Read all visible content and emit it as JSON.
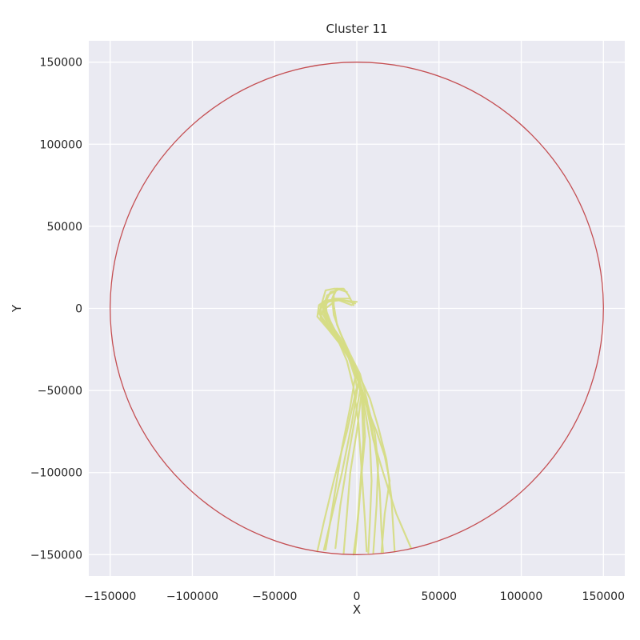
{
  "chart_data": {
    "type": "line",
    "title": "Cluster 11",
    "xlabel": "X",
    "ylabel": "Y",
    "xlim": [
      -163000,
      163000
    ],
    "ylim": [
      -163000,
      163000
    ],
    "xticks": [
      -150000,
      -100000,
      -50000,
      0,
      50000,
      100000,
      150000
    ],
    "yticks": [
      -150000,
      -100000,
      -50000,
      0,
      50000,
      100000,
      150000
    ],
    "xtick_labels": [
      "−150000",
      "−100000",
      "−50000",
      "0",
      "50000",
      "100000",
      "150000"
    ],
    "ytick_labels": [
      "−150000",
      "−100000",
      "−50000",
      "0",
      "50000",
      "100000",
      "150000"
    ],
    "grid": true,
    "background_color": "#eaeaf2",
    "boundary_circle": {
      "center": [
        0,
        0
      ],
      "radius": 150000,
      "color": "#c44e52"
    },
    "trajectory_color": "#d6dc85",
    "series": [
      {
        "points": [
          [
            -2000,
            2000
          ],
          [
            -5000,
            8000
          ],
          [
            -8000,
            12000
          ],
          [
            -14000,
            12000
          ],
          [
            -19000,
            11000
          ],
          [
            -21000,
            4000
          ],
          [
            -18000,
            -6000
          ],
          [
            -12000,
            -18000
          ],
          [
            -6000,
            -32000
          ],
          [
            -2000,
            -48000
          ],
          [
            1000,
            -70000
          ],
          [
            3000,
            -100000
          ],
          [
            5000,
            -130000
          ],
          [
            6000,
            -148000
          ]
        ]
      },
      {
        "points": [
          [
            -1000,
            3000
          ],
          [
            -8000,
            5000
          ],
          [
            -16000,
            5000
          ],
          [
            -21000,
            3000
          ],
          [
            -23000,
            -3000
          ],
          [
            -18000,
            -10000
          ],
          [
            -10000,
            -20000
          ],
          [
            -3000,
            -32000
          ],
          [
            1000,
            -45000
          ],
          [
            -3000,
            -70000
          ],
          [
            -9000,
            -100000
          ],
          [
            -16000,
            -130000
          ],
          [
            -20000,
            -147000
          ]
        ]
      },
      {
        "points": [
          [
            0,
            4000
          ],
          [
            -10000,
            5000
          ],
          [
            -19000,
            5000
          ],
          [
            -23000,
            2000
          ],
          [
            -24000,
            -5000
          ],
          [
            -18000,
            -12000
          ],
          [
            -10000,
            -22000
          ],
          [
            -2000,
            -34000
          ],
          [
            0,
            -48000
          ],
          [
            -6000,
            -75000
          ],
          [
            -14000,
            -105000
          ],
          [
            -20000,
            -130000
          ],
          [
            -24000,
            -148000
          ]
        ]
      },
      {
        "points": [
          [
            -6000,
            10000
          ],
          [
            -12000,
            12000
          ],
          [
            -14000,
            8000
          ],
          [
            -14000,
            2000
          ],
          [
            -12000,
            -10000
          ],
          [
            -8000,
            -20000
          ],
          [
            -3000,
            -32000
          ],
          [
            2000,
            -45000
          ],
          [
            6000,
            -60000
          ],
          [
            10000,
            -80000
          ],
          [
            16000,
            -100000
          ],
          [
            24000,
            -125000
          ],
          [
            33000,
            -146000
          ]
        ]
      },
      {
        "points": [
          [
            -14000,
            10000
          ],
          [
            -18000,
            8000
          ],
          [
            -20000,
            2000
          ],
          [
            -16000,
            -8000
          ],
          [
            -10000,
            -20000
          ],
          [
            -4000,
            -32000
          ],
          [
            2000,
            -42000
          ],
          [
            8000,
            -55000
          ],
          [
            13000,
            -72000
          ],
          [
            18000,
            -92000
          ],
          [
            21000,
            -115000
          ],
          [
            23000,
            -148000
          ]
        ]
      },
      {
        "points": [
          [
            -18000,
            4000
          ],
          [
            -20000,
            -2000
          ],
          [
            -15000,
            -12000
          ],
          [
            -8000,
            -24000
          ],
          [
            -2000,
            -35000
          ],
          [
            2000,
            -48000
          ],
          [
            6000,
            -60000
          ],
          [
            12000,
            -75000
          ],
          [
            17000,
            -90000
          ],
          [
            20000,
            -105000
          ],
          [
            17000,
            -125000
          ],
          [
            15000,
            -149000
          ]
        ]
      },
      {
        "points": [
          [
            -15000,
            3000
          ],
          [
            -19000,
            0
          ],
          [
            -17000,
            -8000
          ],
          [
            -10000,
            -18000
          ],
          [
            -4000,
            -30000
          ],
          [
            0,
            -40000
          ],
          [
            3000,
            -55000
          ],
          [
            4000,
            -80000
          ],
          [
            2000,
            -110000
          ],
          [
            0,
            -135000
          ],
          [
            -2000,
            -150000
          ]
        ]
      },
      {
        "points": [
          [
            -20000,
            1000
          ],
          [
            -22000,
            -5000
          ],
          [
            -16000,
            -13000
          ],
          [
            -8000,
            -22000
          ],
          [
            -2000,
            -34000
          ],
          [
            2000,
            -46000
          ],
          [
            5000,
            -62000
          ],
          [
            8000,
            -80000
          ],
          [
            9000,
            -105000
          ],
          [
            8000,
            -130000
          ],
          [
            7000,
            -149000
          ]
        ]
      },
      {
        "points": [
          [
            -3000,
            2000
          ],
          [
            -11000,
            5000
          ],
          [
            -20000,
            4000
          ],
          [
            -23000,
            -2000
          ],
          [
            -19000,
            -10000
          ],
          [
            -12000,
            -19000
          ],
          [
            -5000,
            -30000
          ],
          [
            -1000,
            -42000
          ],
          [
            -4000,
            -60000
          ],
          [
            -9000,
            -85000
          ],
          [
            -13000,
            -110000
          ],
          [
            -17000,
            -135000
          ],
          [
            -19000,
            -147000
          ]
        ]
      },
      {
        "points": [
          [
            -12000,
            11000
          ],
          [
            -16000,
            10000
          ],
          [
            -19000,
            4000
          ],
          [
            -18000,
            -6000
          ],
          [
            -12000,
            -17000
          ],
          [
            -5000,
            -29000
          ],
          [
            1000,
            -40000
          ],
          [
            3000,
            -50000
          ],
          [
            0,
            -75000
          ],
          [
            -4000,
            -100000
          ],
          [
            -6000,
            -125000
          ],
          [
            -8000,
            -149000
          ]
        ]
      },
      {
        "points": [
          [
            -9000,
            12000
          ],
          [
            -13000,
            11000
          ],
          [
            -15000,
            6000
          ],
          [
            -14000,
            -4000
          ],
          [
            -10000,
            -15000
          ],
          [
            -4000,
            -28000
          ],
          [
            2000,
            -40000
          ],
          [
            6000,
            -55000
          ],
          [
            9000,
            -72000
          ],
          [
            12000,
            -90000
          ],
          [
            14000,
            -112000
          ],
          [
            15000,
            -135000
          ],
          [
            16000,
            -149000
          ]
        ]
      },
      {
        "points": [
          [
            -16000,
            5000
          ],
          [
            -21000,
            1000
          ],
          [
            -18000,
            -9000
          ],
          [
            -11000,
            -19000
          ],
          [
            -4000,
            -31000
          ],
          [
            1000,
            -44000
          ],
          [
            4000,
            -58000
          ],
          [
            5000,
            -78000
          ],
          [
            3000,
            -100000
          ],
          [
            1000,
            -125000
          ],
          [
            -1000,
            -149000
          ]
        ]
      },
      {
        "points": [
          [
            -10000,
            5000
          ],
          [
            -18000,
            4000
          ],
          [
            -21000,
            -3000
          ],
          [
            -16000,
            -12000
          ],
          [
            -9000,
            -22000
          ],
          [
            -3000,
            -33000
          ],
          [
            2000,
            -46000
          ],
          [
            7000,
            -60000
          ],
          [
            11000,
            -76000
          ],
          [
            13000,
            -95000
          ],
          [
            12000,
            -120000
          ],
          [
            10000,
            -149000
          ]
        ]
      },
      {
        "points": [
          [
            -4000,
            6000
          ],
          [
            -14000,
            6000
          ],
          [
            -22000,
            2000
          ],
          [
            -22000,
            -6000
          ],
          [
            -15000,
            -14000
          ],
          [
            -7000,
            -24000
          ],
          [
            -1000,
            -36000
          ],
          [
            2000,
            -50000
          ],
          [
            -2000,
            -72000
          ],
          [
            -6000,
            -95000
          ],
          [
            -10000,
            -120000
          ],
          [
            -13000,
            -146000
          ]
        ]
      }
    ]
  }
}
